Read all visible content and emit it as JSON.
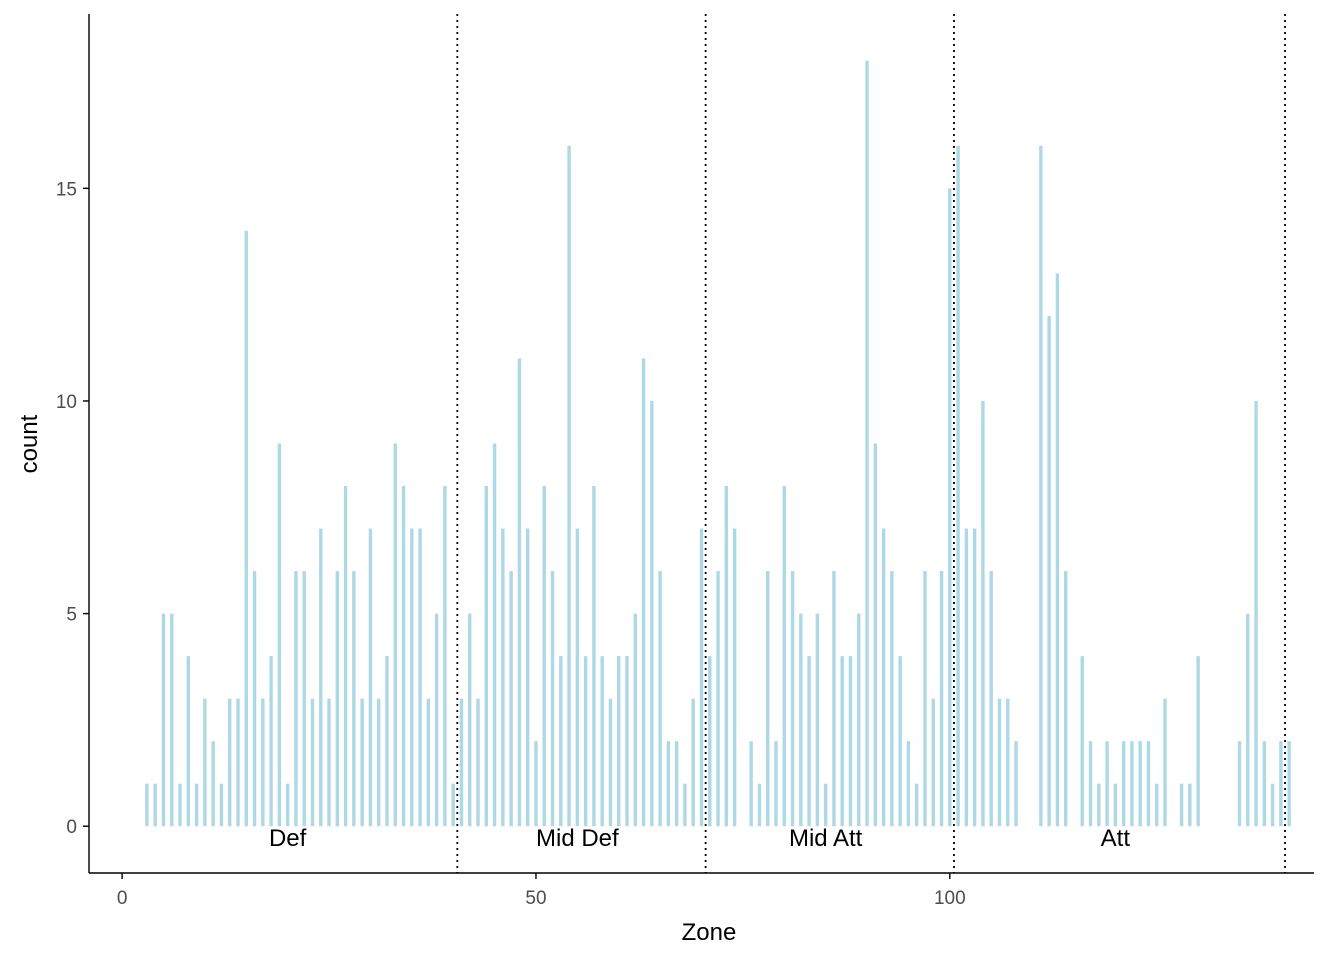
{
  "chart_data": {
    "type": "bar",
    "xlabel": "Zone",
    "ylabel": "count",
    "xlim": [
      -4,
      144
    ],
    "ylim": [
      -1.1,
      19.1
    ],
    "x_ticks": [
      0,
      50,
      100
    ],
    "y_ticks": [
      0,
      5,
      10,
      15
    ],
    "grid": false,
    "bar_color": "#add8e6",
    "zone_line_color": "#000000",
    "zone_dividers": [
      40.5,
      70.5,
      100.5,
      140.5
    ],
    "zone_labels": [
      {
        "text": "Def",
        "x": 20
      },
      {
        "text": "Mid Def",
        "x": 55
      },
      {
        "text": "Mid Att",
        "x": 85
      },
      {
        "text": "Att",
        "x": 120
      }
    ],
    "x": [
      3,
      4,
      5,
      6,
      7,
      8,
      9,
      10,
      11,
      12,
      13,
      14,
      15,
      16,
      17,
      18,
      19,
      20,
      21,
      22,
      23,
      24,
      25,
      26,
      27,
      28,
      29,
      30,
      31,
      32,
      33,
      34,
      35,
      36,
      37,
      38,
      39,
      40,
      41,
      42,
      43,
      44,
      45,
      46,
      47,
      48,
      49,
      50,
      51,
      52,
      53,
      54,
      55,
      56,
      57,
      58,
      59,
      60,
      61,
      62,
      63,
      64,
      65,
      66,
      67,
      68,
      69,
      70,
      71,
      72,
      73,
      74,
      75,
      76,
      77,
      78,
      79,
      80,
      81,
      82,
      83,
      84,
      85,
      86,
      87,
      88,
      89,
      90,
      91,
      92,
      93,
      94,
      95,
      96,
      97,
      98,
      99,
      100,
      101,
      102,
      103,
      104,
      105,
      106,
      107,
      108,
      109,
      110,
      111,
      112,
      113,
      114,
      115,
      116,
      117,
      118,
      119,
      120,
      121,
      122,
      123,
      124,
      125,
      126,
      127,
      128,
      129,
      130,
      131,
      132,
      133,
      134,
      135,
      136,
      137,
      138,
      139,
      140,
      141
    ],
    "values": [
      1,
      1,
      5,
      5,
      1,
      4,
      1,
      3,
      2,
      1,
      3,
      3,
      14,
      6,
      3,
      4,
      9,
      1,
      6,
      6,
      3,
      7,
      3,
      6,
      8,
      6,
      3,
      7,
      3,
      4,
      9,
      8,
      7,
      7,
      3,
      5,
      8,
      1,
      3,
      5,
      3,
      8,
      9,
      7,
      6,
      11,
      7,
      2,
      8,
      6,
      4,
      16,
      7,
      4,
      8,
      4,
      3,
      4,
      4,
      5,
      11,
      10,
      6,
      2,
      2,
      1,
      3,
      7,
      4,
      6,
      8,
      7,
      0,
      2,
      1,
      6,
      2,
      8,
      6,
      5,
      4,
      5,
      1,
      6,
      4,
      4,
      5,
      18,
      9,
      7,
      6,
      4,
      2,
      1,
      6,
      3,
      6,
      15,
      16,
      7,
      7,
      10,
      6,
      3,
      3,
      2,
      0,
      0,
      16,
      12,
      13,
      6,
      0,
      4,
      2,
      1,
      2,
      1,
      2,
      2,
      2,
      2,
      1,
      3,
      0,
      1,
      1,
      4,
      0,
      0,
      0,
      0,
      2,
      5,
      10,
      2,
      1,
      2,
      2
    ]
  }
}
